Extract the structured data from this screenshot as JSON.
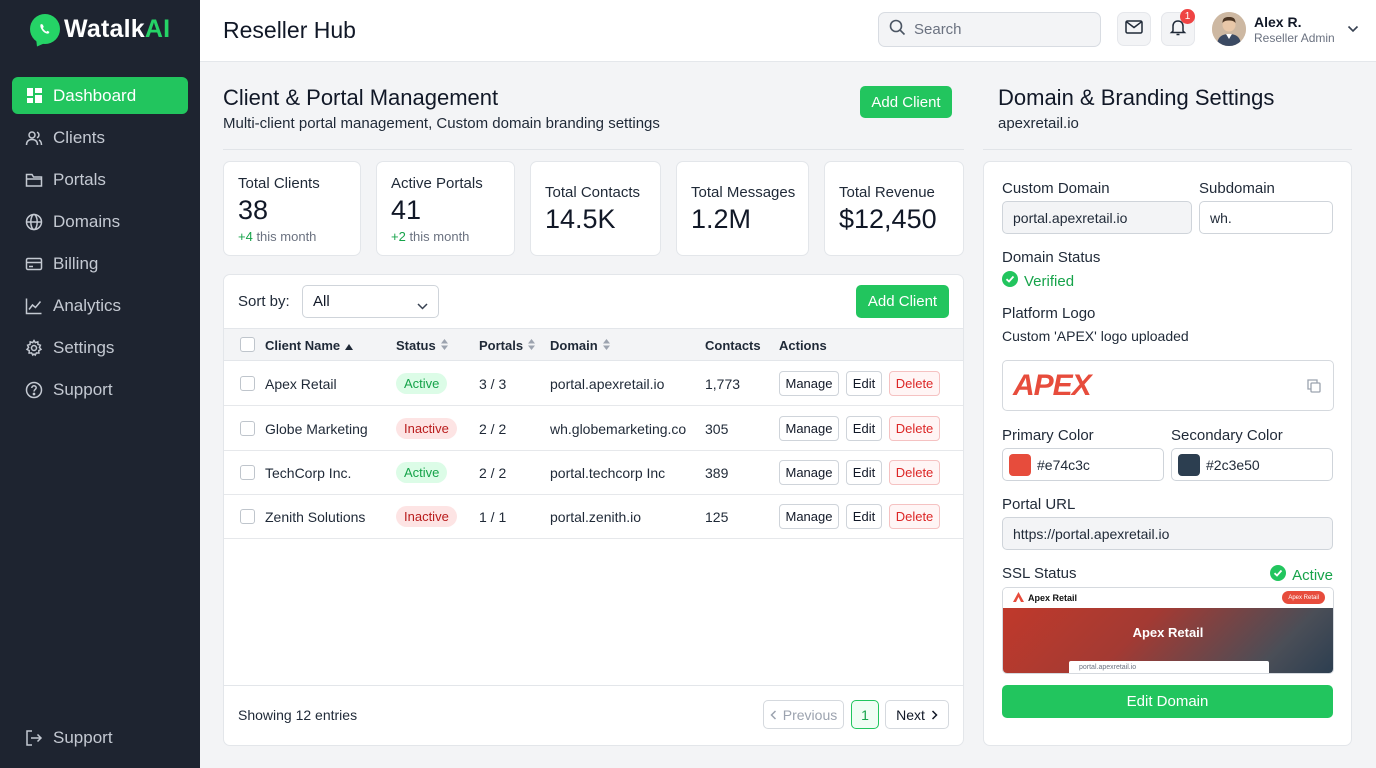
{
  "app": {
    "logo_main": "Watalk",
    "logo_accent": "AI",
    "page_title": "Reseller Hub"
  },
  "sidebar": {
    "items": [
      {
        "label": "Dashboard",
        "icon": "grid-icon"
      },
      {
        "label": "Clients",
        "icon": "users-icon"
      },
      {
        "label": "Portals",
        "icon": "folder-icon"
      },
      {
        "label": "Domains",
        "icon": "globe-icon"
      },
      {
        "label": "Billing",
        "icon": "card-icon"
      },
      {
        "label": "Analytics",
        "icon": "chart-icon"
      },
      {
        "label": "Settings",
        "icon": "gear-icon"
      },
      {
        "label": "Support",
        "icon": "help-icon"
      }
    ],
    "bottom_item": {
      "label": "Support",
      "icon": "logout-icon"
    }
  },
  "header": {
    "search_placeholder": "Search",
    "notification_count": "1",
    "user_name": "Alex R.",
    "user_role": "Reseller Admin"
  },
  "management": {
    "title": "Client & Portal Management",
    "subtitle": "Multi-client portal management, Custom domain branding settings",
    "add_client_label": "Add Client"
  },
  "stats": [
    {
      "label": "Total Clients",
      "value": "38",
      "change_plus": "+4",
      "change_text": " this month"
    },
    {
      "label": "Active Portals",
      "value": "41",
      "change_plus": "+2",
      "change_text": " this month"
    },
    {
      "label": "Total Contacts",
      "value": "14.5K"
    },
    {
      "label": "Total Messages",
      "value": "1.2M"
    },
    {
      "label": "Total Revenue",
      "value": "$12,450"
    }
  ],
  "table": {
    "sort_label": "Sort by:",
    "sort_value": "All",
    "add_client_label": "Add Client",
    "columns": [
      "Client Name",
      "Status",
      "Portals",
      "Domain",
      "Contacts",
      "Actions"
    ],
    "rows": [
      {
        "name": "Apex Retail",
        "status": "Active",
        "portals": "3 / 3",
        "domain": "portal.apexretail.io",
        "contacts": "1,773"
      },
      {
        "name": "Globe Marketing",
        "status": "Inactive",
        "portals": "2 / 2",
        "domain": "wh.globemarketing.co",
        "contacts": "305"
      },
      {
        "name": "TechCorp Inc.",
        "status": "Active",
        "portals": "2 / 2",
        "domain": "portal.techcorp Inc",
        "contacts": "389"
      },
      {
        "name": "Zenith Solutions",
        "status": "Inactive",
        "portals": "1 / 1",
        "domain": "portal.zenith.io",
        "contacts": "125"
      }
    ],
    "actions": {
      "manage": "Manage",
      "edit": "Edit",
      "delete": "Delete"
    },
    "footer_text": "Showing 12 entries",
    "pagination": {
      "previous": "Previous",
      "current": "1",
      "next": "Next"
    }
  },
  "branding": {
    "title": "Domain & Branding Settings",
    "subtitle": "apexretail.io",
    "custom_domain_label": "Custom Domain",
    "custom_domain_value": "portal.apexretail.io",
    "subdomain_label": "Subdomain",
    "subdomain_value": "wh.",
    "domain_status_label": "Domain Status",
    "domain_status_value": "Verified",
    "platform_logo_label": "Platform Logo",
    "platform_logo_desc": "Custom 'APEX' logo uploaded",
    "logo_text": "APEX",
    "primary_color_label": "Primary Color",
    "primary_color": "#e74c3c",
    "secondary_color_label": "Secondary Color",
    "secondary_color": "#2c3e50",
    "portal_url_label": "Portal URL",
    "portal_url_value": "https://portal.apexretail.io",
    "ssl_label": "SSL Status",
    "ssl_value": "Active",
    "preview": {
      "brand": "Apex Retail",
      "pill": "Apex Retail",
      "hero_title": "Apex Retail",
      "url": "portal.apexretail.io"
    },
    "edit_domain_label": "Edit Domain"
  },
  "colors": {
    "accent": "#22c55e",
    "sidebar_bg": "#1e2430",
    "danger": "#dc2626"
  }
}
